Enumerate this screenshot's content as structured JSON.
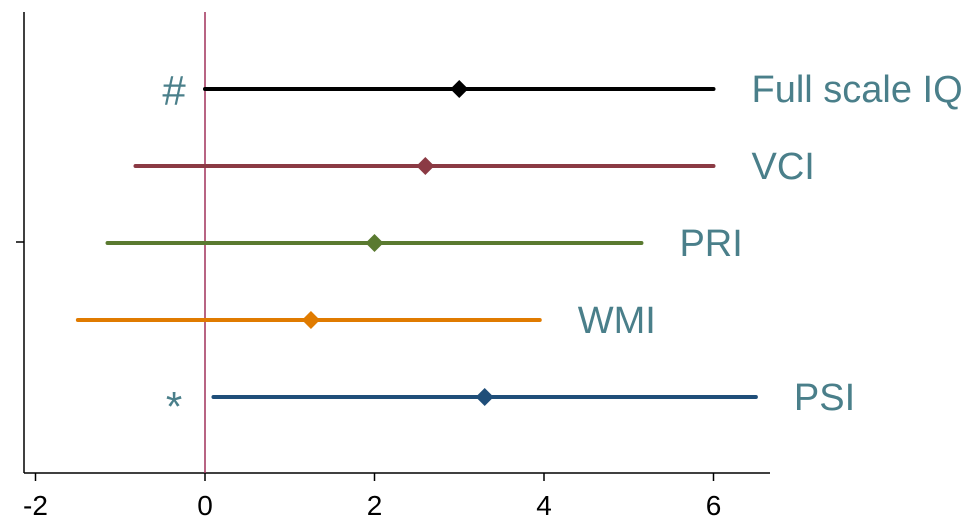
{
  "chart_data": {
    "type": "forest",
    "title": "",
    "xlabel": "",
    "ylabel": "",
    "xlim": [
      -2.2,
      6.6
    ],
    "xticks": [
      -2,
      0,
      2,
      4,
      6
    ],
    "xtick_labels": [
      "-2",
      "0",
      "2",
      "4",
      "6"
    ],
    "reference_line": {
      "x": 0,
      "color": "#a0305a"
    },
    "label_color": "#4a7f8a",
    "series": [
      {
        "name": "Full scale IQ",
        "estimate": 3.0,
        "ci": [
          0.0,
          6.0
        ],
        "color": "#000000",
        "mark": "#"
      },
      {
        "name": "VCI",
        "estimate": 2.6,
        "ci": [
          -0.82,
          6.0
        ],
        "color": "#8b3a44",
        "mark": ""
      },
      {
        "name": "PRI",
        "estimate": 2.0,
        "ci": [
          -1.15,
          5.15
        ],
        "color": "#5a7a30",
        "mark": ""
      },
      {
        "name": "WMI",
        "estimate": 1.25,
        "ci": [
          -1.5,
          3.95
        ],
        "color": "#e07b00",
        "mark": ""
      },
      {
        "name": "PSI",
        "estimate": 3.3,
        "ci": [
          0.1,
          6.5
        ],
        "color": "#1f4e79",
        "mark": "*"
      }
    ]
  }
}
